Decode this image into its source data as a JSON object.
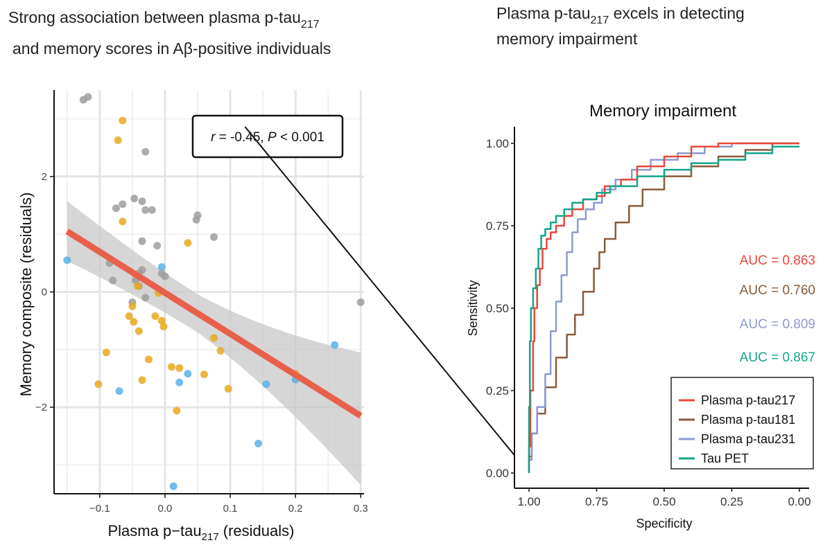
{
  "left_panel": {
    "title_line1": "Strong association between plasma p-tau",
    "title_line1_sub": "217",
    "title_line2": "and memory scores in Aβ-positive individuals"
  },
  "right_panel": {
    "title_line1_a": "Plasma  p-tau",
    "title_line1_sub": "217",
    "title_line1_b": "  excels in detecting",
    "title_line2": "memory impairment"
  },
  "colors": {
    "grey": "#9e9e9e",
    "yellow": "#e8a91f",
    "blue": "#5bb2e6",
    "regression": "#e8604c",
    "ci": "#c8c8c8",
    "ptau217": "#e8473a",
    "ptau181": "#8a5a3b",
    "ptau231": "#8b9bd0",
    "taupet": "#13a58a"
  },
  "chart_data": [
    {
      "type": "scatter",
      "xlabel": "Plasma p−tau",
      "xlabel_sub": "217",
      "xlabel_suffix": " (residuals)",
      "ylabel": "Memory composite (residuals)",
      "xlim": [
        -0.17,
        0.305
      ],
      "ylim": [
        -3.5,
        3.5
      ],
      "xticks": [
        -0.1,
        0.0,
        0.1,
        0.2,
        0.3
      ],
      "xtick_labels": [
        "−0.1",
        "0.0",
        "0.1",
        "0.2",
        "0.3"
      ],
      "yticks": [
        -2,
        0,
        2
      ],
      "ytick_labels": [
        "−2",
        "0",
        "2"
      ],
      "grid": true,
      "annotation": {
        "r_label": "r",
        "r_value": " = -0.45, ",
        "p_label": "P",
        "p_value": " < 0.001"
      },
      "regression": {
        "x": [
          -0.15,
          0.3
        ],
        "y": [
          1.05,
          -2.15
        ],
        "ci_upper": [
          1.7,
          -1.05
        ],
        "ci_lower": [
          0.42,
          -3.35
        ]
      },
      "series": [
        {
          "group": "grey",
          "points": [
            [
              -0.125,
              3.33
            ],
            [
              -0.118,
              3.38
            ],
            [
              -0.03,
              2.43
            ],
            [
              -0.047,
              1.62
            ],
            [
              -0.075,
              1.45
            ],
            [
              -0.065,
              1.52
            ],
            [
              -0.035,
              1.57
            ],
            [
              -0.03,
              1.42
            ],
            [
              -0.02,
              1.42
            ],
            [
              0.05,
              1.33
            ],
            [
              0.048,
              1.25
            ],
            [
              0.075,
              0.95
            ],
            [
              -0.035,
              0.88
            ],
            [
              -0.012,
              0.8
            ],
            [
              -0.085,
              0.5
            ],
            [
              -0.045,
              0.2
            ],
            [
              -0.04,
              0.32
            ],
            [
              -0.035,
              0.38
            ],
            [
              -0.005,
              0.32
            ],
            [
              0.0,
              0.27
            ],
            [
              -0.08,
              0.2
            ],
            [
              -0.04,
              0.1
            ],
            [
              -0.05,
              -0.18
            ],
            [
              -0.03,
              -0.1
            ],
            [
              0.3,
              -0.18
            ]
          ]
        },
        {
          "group": "yellow",
          "points": [
            [
              -0.065,
              2.97
            ],
            [
              -0.072,
              2.63
            ],
            [
              -0.065,
              1.22
            ],
            [
              0.035,
              0.85
            ],
            [
              -0.045,
              0.3
            ],
            [
              -0.042,
              0.1
            ],
            [
              -0.05,
              -0.25
            ],
            [
              -0.055,
              -0.42
            ],
            [
              -0.048,
              -0.52
            ],
            [
              -0.015,
              -0.42
            ],
            [
              -0.005,
              -0.5
            ],
            [
              -0.002,
              -0.6
            ],
            [
              -0.04,
              -0.68
            ],
            [
              0.075,
              -0.8
            ],
            [
              0.085,
              -1.02
            ],
            [
              -0.09,
              -1.05
            ],
            [
              -0.025,
              -1.17
            ],
            [
              0.01,
              -1.3
            ],
            [
              0.022,
              -1.32
            ],
            [
              0.06,
              -1.43
            ],
            [
              -0.035,
              -1.53
            ],
            [
              -0.102,
              -1.6
            ],
            [
              0.097,
              -1.68
            ],
            [
              0.018,
              -2.06
            ],
            [
              0.2,
              -1.42
            ],
            [
              -0.01,
              -0.02
            ]
          ]
        },
        {
          "group": "blue",
          "points": [
            [
              -0.15,
              0.55
            ],
            [
              -0.005,
              0.43
            ],
            [
              0.26,
              -0.92
            ],
            [
              0.155,
              -1.6
            ],
            [
              0.2,
              -1.52
            ],
            [
              0.035,
              -1.42
            ],
            [
              0.022,
              -1.57
            ],
            [
              -0.07,
              -1.72
            ],
            [
              0.143,
              -2.63
            ],
            [
              0.013,
              -3.37
            ]
          ]
        }
      ]
    },
    {
      "type": "line",
      "title": "Memory impairment",
      "xlabel": "Specificity",
      "ylabel": "Sensitivity",
      "xlim": [
        1.0,
        0.0
      ],
      "ylim": [
        0.0,
        1.0
      ],
      "xticks": [
        1.0,
        0.75,
        0.5,
        0.25,
        0.0
      ],
      "xtick_labels": [
        "1.00",
        "0.75",
        "0.50",
        "0.25",
        "0.00"
      ],
      "yticks": [
        0.0,
        0.25,
        0.5,
        0.75,
        1.0
      ],
      "ytick_labels": [
        "0.00",
        "0.25",
        "0.50",
        "0.75",
        "1.00"
      ],
      "legend_position": "bottom-right",
      "diagonal": true,
      "series": [
        {
          "name": "Plasma p-tau217",
          "auc_label": "AUC = 0.863",
          "color_key": "ptau217",
          "points": [
            [
              1,
              0
            ],
            [
              0.995,
              0.08
            ],
            [
              0.985,
              0.25
            ],
            [
              0.98,
              0.4
            ],
            [
              0.97,
              0.5
            ],
            [
              0.96,
              0.57
            ],
            [
              0.95,
              0.62
            ],
            [
              0.935,
              0.68
            ],
            [
              0.92,
              0.71
            ],
            [
              0.9,
              0.73
            ],
            [
              0.87,
              0.75
            ],
            [
              0.84,
              0.78
            ],
            [
              0.8,
              0.8
            ],
            [
              0.75,
              0.83
            ],
            [
              0.72,
              0.84
            ],
            [
              0.66,
              0.87
            ],
            [
              0.6,
              0.89
            ],
            [
              0.5,
              0.93
            ],
            [
              0.4,
              0.96
            ],
            [
              0.3,
              0.99
            ],
            [
              0.2,
              1.0
            ],
            [
              0.0,
              1.0
            ]
          ]
        },
        {
          "name": "Plasma p-tau181",
          "auc_label": "AUC = 0.760",
          "color_key": "ptau181",
          "points": [
            [
              1,
              0
            ],
            [
              0.99,
              0.05
            ],
            [
              0.97,
              0.12
            ],
            [
              0.94,
              0.18
            ],
            [
              0.9,
              0.26
            ],
            [
              0.86,
              0.35
            ],
            [
              0.83,
              0.42
            ],
            [
              0.8,
              0.48
            ],
            [
              0.76,
              0.55
            ],
            [
              0.74,
              0.62
            ],
            [
              0.72,
              0.67
            ],
            [
              0.68,
              0.71
            ],
            [
              0.63,
              0.76
            ],
            [
              0.58,
              0.81
            ],
            [
              0.5,
              0.86
            ],
            [
              0.4,
              0.9
            ],
            [
              0.3,
              0.93
            ],
            [
              0.2,
              0.96
            ],
            [
              0.1,
              0.98
            ],
            [
              0.0,
              1.0
            ]
          ]
        },
        {
          "name": "Plasma p-tau231",
          "auc_label": "AUC = 0.809",
          "color_key": "ptau231",
          "points": [
            [
              1,
              0
            ],
            [
              0.99,
              0.04
            ],
            [
              0.97,
              0.12
            ],
            [
              0.94,
              0.2
            ],
            [
              0.92,
              0.3
            ],
            [
              0.9,
              0.43
            ],
            [
              0.88,
              0.52
            ],
            [
              0.86,
              0.6
            ],
            [
              0.84,
              0.67
            ],
            [
              0.82,
              0.73
            ],
            [
              0.79,
              0.77
            ],
            [
              0.76,
              0.8
            ],
            [
              0.73,
              0.82
            ],
            [
              0.68,
              0.86
            ],
            [
              0.62,
              0.89
            ],
            [
              0.55,
              0.92
            ],
            [
              0.45,
              0.95
            ],
            [
              0.35,
              0.97
            ],
            [
              0.25,
              0.99
            ],
            [
              0.15,
              1.0
            ],
            [
              0.0,
              1.0
            ]
          ]
        },
        {
          "name": "Tau PET",
          "auc_label": "AUC = 0.867",
          "color_key": "taupet",
          "points": [
            [
              1,
              0
            ],
            [
              0.997,
              0.2
            ],
            [
              0.993,
              0.4
            ],
            [
              0.985,
              0.5
            ],
            [
              0.975,
              0.56
            ],
            [
              0.965,
              0.62
            ],
            [
              0.955,
              0.68
            ],
            [
              0.94,
              0.72
            ],
            [
              0.92,
              0.74
            ],
            [
              0.9,
              0.76
            ],
            [
              0.87,
              0.78
            ],
            [
              0.84,
              0.8
            ],
            [
              0.8,
              0.82
            ],
            [
              0.75,
              0.83
            ],
            [
              0.7,
              0.85
            ],
            [
              0.6,
              0.87
            ],
            [
              0.5,
              0.9
            ],
            [
              0.4,
              0.92
            ],
            [
              0.3,
              0.94
            ],
            [
              0.2,
              0.95
            ],
            [
              0.1,
              0.97
            ],
            [
              0.0,
              0.99
            ]
          ]
        }
      ]
    }
  ]
}
